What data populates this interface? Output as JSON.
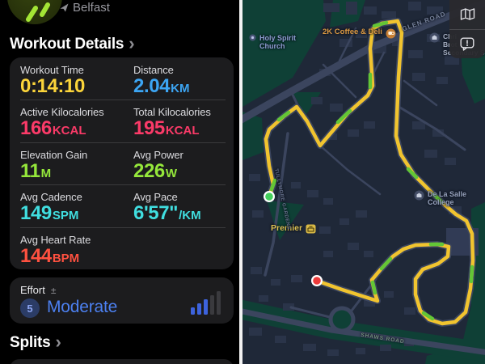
{
  "left_panel": {
    "workout_badge": {
      "icon": "running-figure-icon",
      "accent": "#A3E535"
    },
    "location": {
      "icon": "navigation-arrow-icon",
      "text": "Belfast"
    },
    "workout_details_heading": "Workout Details",
    "splits_heading": "Splits",
    "chevron": "›",
    "metrics": [
      {
        "label": "Workout Time",
        "value": "0:14:10",
        "unit": "",
        "color": "#FBD43A"
      },
      {
        "label": "Distance",
        "value": "2.04",
        "unit": "KM",
        "color": "#3CA5F3"
      },
      {
        "label": "Active Kilocalories",
        "value": "166",
        "unit": "KCAL",
        "color": "#FB3A68"
      },
      {
        "label": "Total Kilocalories",
        "value": "195",
        "unit": "KCAL",
        "color": "#FB3A68"
      },
      {
        "label": "Elevation Gain",
        "value": "11",
        "unit": "M",
        "color": "#95E73B"
      },
      {
        "label": "Avg Power",
        "value": "226",
        "unit": "W",
        "color": "#95E73B"
      },
      {
        "label": "Avg Cadence",
        "value": "149",
        "unit": "SPM",
        "color": "#40DEE0"
      },
      {
        "label": "Avg Pace",
        "value": "6'57\"",
        "unit": "/KM",
        "color": "#40DEE0"
      },
      {
        "label": "Avg Heart Rate",
        "value": "144",
        "unit": "BPM",
        "color": "#FF5140"
      }
    ],
    "effort": {
      "label": "Effort",
      "adjust_symbol": "±",
      "score": "5",
      "rating": "Moderate",
      "accent": "#4C80F0",
      "bars_filled": 3,
      "bars_total": 5
    }
  },
  "map": {
    "controls": [
      {
        "name": "map-mode-button",
        "icon": "map-icon"
      },
      {
        "name": "report-issue-button",
        "icon": "report-issue-icon"
      }
    ],
    "route": {
      "color": "#F1C42F",
      "fast_color": "#63C636",
      "start_marker": "#44CF5C",
      "end_marker": "#ED3B3B"
    },
    "labels": {
      "church_line1": "Holy Spirit",
      "church_line2": "Church",
      "coffee": "2K Coffee & Deli",
      "school_line1": "Chri",
      "school_line2": "Brot",
      "school_line3": "Secondary S",
      "college_line1": "De La Salle",
      "college_line2": "College",
      "store": "Premier",
      "glen_road": "GLEN ROAD",
      "shaws_road": "SHAWS ROAD",
      "tullymore": "TULLYMORE GARDENS"
    }
  }
}
